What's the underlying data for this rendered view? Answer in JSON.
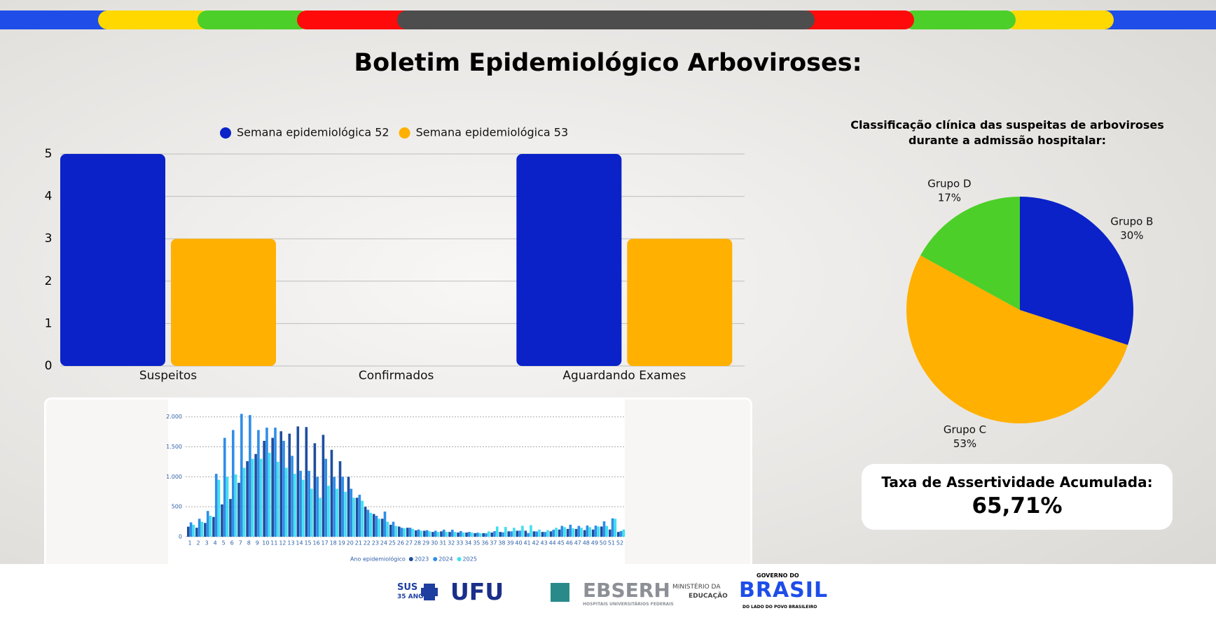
{
  "title": "Boletim Epidemiológico Arboviroses:",
  "chart_data": [
    {
      "type": "bar",
      "categories": [
        "Suspeitos",
        "Confirmados",
        "Aguardando Exames"
      ],
      "series": [
        {
          "name": "Semana epidemiológica 52",
          "color": "#0a22c8",
          "values": [
            5,
            0,
            5
          ]
        },
        {
          "name": "Semana epidemiológica 53",
          "color": "#ffb000",
          "values": [
            3,
            0,
            3
          ]
        }
      ],
      "ylim": [
        0,
        5
      ],
      "yticks": [
        0,
        1,
        2,
        3,
        4,
        5
      ],
      "grid": true,
      "legend": "top"
    },
    {
      "type": "bar",
      "x_label": "Ano epidemiológico",
      "categories": [
        "1",
        "2",
        "3",
        "4",
        "5",
        "6",
        "7",
        "8",
        "9",
        "10",
        "11",
        "12",
        "13",
        "14",
        "15",
        "16",
        "17",
        "18",
        "19",
        "20",
        "21",
        "22",
        "23",
        "24",
        "25",
        "26",
        "27",
        "28",
        "29",
        "30",
        "31",
        "32",
        "33",
        "34",
        "35",
        "36",
        "37",
        "38",
        "39",
        "40",
        "41",
        "42",
        "43",
        "44",
        "45",
        "46",
        "47",
        "48",
        "49",
        "50",
        "51",
        "52"
      ],
      "series": [
        {
          "name": "2023",
          "color": "#1f4e9e",
          "values": [
            168,
            150,
            230,
            330,
            540,
            630,
            900,
            1260,
            1380,
            1600,
            1650,
            1760,
            1720,
            1840,
            1830,
            1560,
            1700,
            1450,
            1260,
            1000,
            650,
            500,
            380,
            300,
            200,
            170,
            150,
            107,
            100,
            80,
            90,
            80,
            70,
            70,
            60,
            60,
            70,
            80,
            90,
            100,
            100,
            90,
            80,
            90,
            120,
            130,
            130,
            110,
            120,
            170,
            120,
            80
          ]
        },
        {
          "name": "2024",
          "color": "#2f8ee8",
          "values": [
            240,
            300,
            430,
            1050,
            1650,
            1780,
            2050,
            2030,
            1780,
            1820,
            1820,
            1600,
            1350,
            1100,
            1100,
            1000,
            1300,
            1000,
            1000,
            800,
            700,
            450,
            350,
            420,
            250,
            150,
            150,
            120,
            109,
            100,
            118,
            117,
            94,
            81,
            68,
            57,
            93,
            74,
            90,
            102,
            62,
            88,
            79,
            117,
            181,
            200,
            181,
            187,
            186,
            257,
            307,
            95
          ]
        },
        {
          "name": "2025",
          "color": "#3fe0f0",
          "values": [
            200,
            250,
            350,
            950,
            1000,
            1040,
            1150,
            1300,
            1300,
            1400,
            1250,
            1150,
            1050,
            950,
            800,
            650,
            850,
            800,
            750,
            650,
            600,
            400,
            300,
            250,
            180,
            140,
            130,
            100,
            90,
            80,
            80,
            80,
            70,
            70,
            60,
            90,
            171,
            163,
            150,
            182,
            193,
            120,
            110,
            150,
            160,
            140,
            150,
            160,
            170,
            180,
            300,
            120
          ]
        }
      ],
      "ylim": [
        0,
        2300
      ],
      "yticks": [
        0,
        500,
        {
          "value": 1000,
          "label": "1.000"
        },
        {
          "value": 1500,
          "label": "1.500"
        },
        {
          "value": 2000,
          "label": "2.000"
        }
      ],
      "grid": true,
      "legend": "bottom"
    },
    {
      "type": "pie",
      "title": "Classificação clínica das suspeitas de arboviroses durante a admissão hospitalar:",
      "categories": [
        "Grupo B",
        "Grupo C",
        "Grupo D"
      ],
      "values": [
        30,
        53,
        17
      ],
      "value_labels": [
        "30%",
        "53%",
        "17%"
      ],
      "colors": [
        "#0a22c8",
        "#ffb000",
        "#4ccf28"
      ]
    }
  ],
  "kpi": {
    "label": "Taxa de Assertividade Acumulada:",
    "value": "65,71%"
  },
  "footer": {
    "sus": "SUS",
    "sus_years": "35 ANOS",
    "ufu": "UFU",
    "ebserh": "EBSERH",
    "ebserh_sub": "HOSPITAIS UNIVERSITÁRIOS FEDERAIS",
    "mec_1": "MINISTÉRIO DA",
    "mec_2": "EDUCAÇÃO",
    "gov_1": "GOVERNO DO",
    "gov_2": "BRASIL",
    "gov_3": "DO LADO DO POVO BRASILEIRO"
  }
}
